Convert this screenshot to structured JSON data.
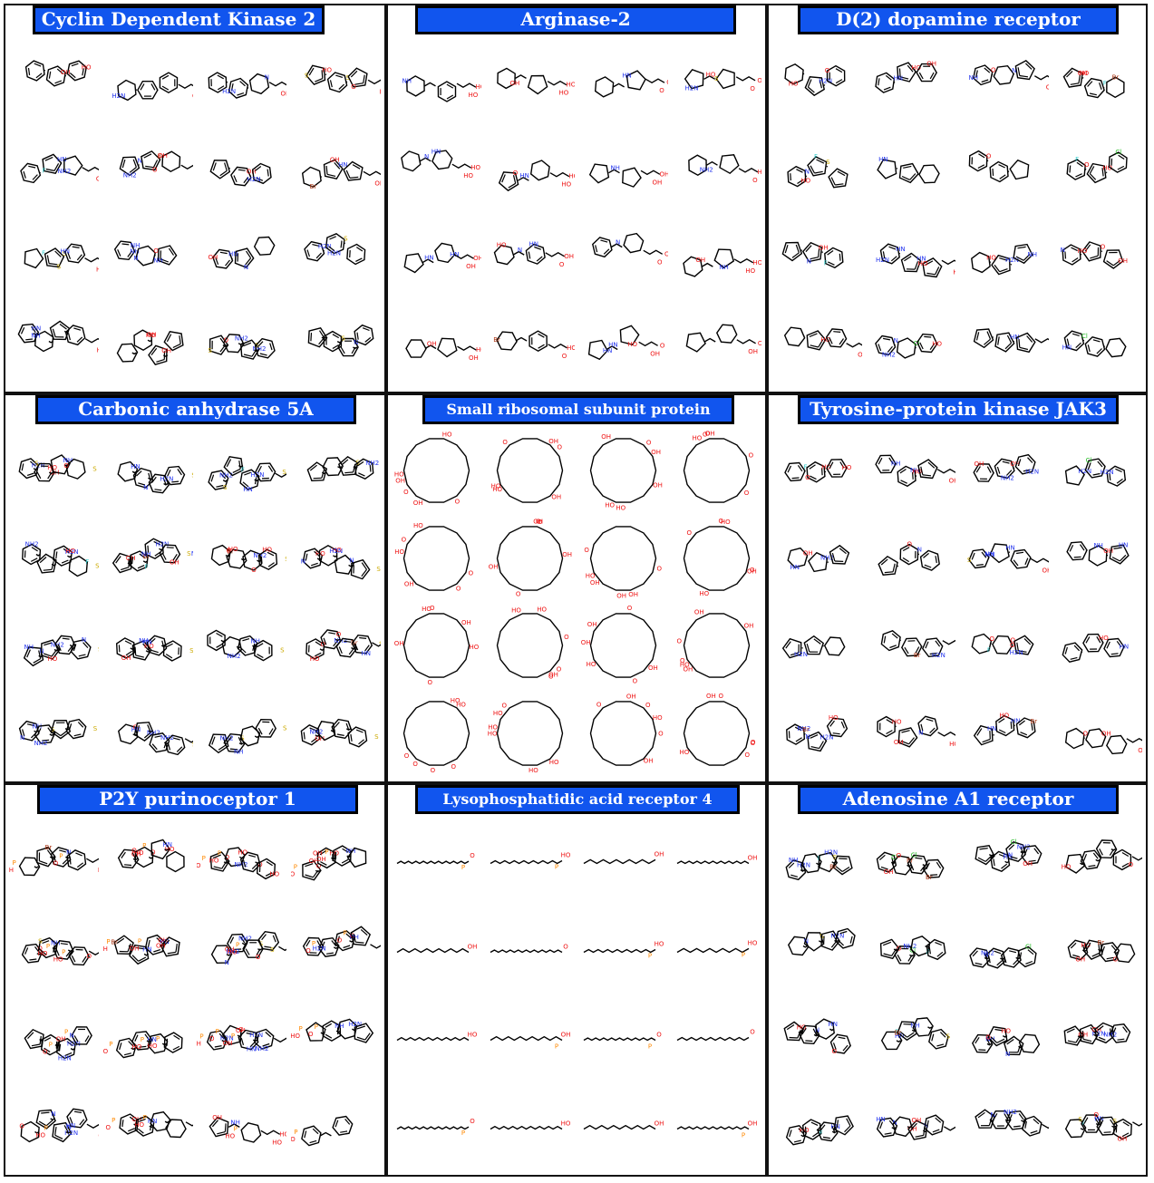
{
  "panels": [
    {
      "title": "Cyclin Dependent Kinase 2",
      "palette": "aromatic"
    },
    {
      "title": "Arginase-2",
      "palette": "acid"
    },
    {
      "title": "D(2) dopamine receptor",
      "palette": "heteroaromatic"
    },
    {
      "title": "Carbonic anhydrase 5A",
      "palette": "sulfonamide"
    },
    {
      "title": "Small ribosomal subunit protein",
      "palette": "sugar"
    },
    {
      "title": "Tyrosine-protein kinase JAK3",
      "palette": "heteroaromatic"
    },
    {
      "title": "P2Y purinoceptor 1",
      "palette": "phosphate"
    },
    {
      "title": "Lysophosphatidic acid receptor 4",
      "palette": "lipid"
    },
    {
      "title": "Adenosine A1 receptor",
      "palette": "purine"
    }
  ],
  "colors": {
    "title_background": "#1155ee",
    "title_text": "#ffffff",
    "bond": "#000000",
    "nitrogen": "#2233ee",
    "oxygen": "#ee1111",
    "sulfur": "#ccaa00",
    "phosphorus": "#ff8800",
    "halogen_fluorine": "#33cccc",
    "halogen_chlorine": "#22bb22",
    "halogen_bromine": "#aa3311"
  },
  "molecule_grid": {
    "rows": 4,
    "columns": 4
  },
  "atom_labels": {
    "nitrogen": [
      "N",
      "NH",
      "NH2",
      "H2N",
      "HN"
    ],
    "oxygen": [
      "O",
      "OH",
      "HO"
    ],
    "sulfur": [
      "S"
    ],
    "phosphorus": [
      "P"
    ],
    "halogens": [
      "F",
      "Cl",
      "Br"
    ]
  }
}
